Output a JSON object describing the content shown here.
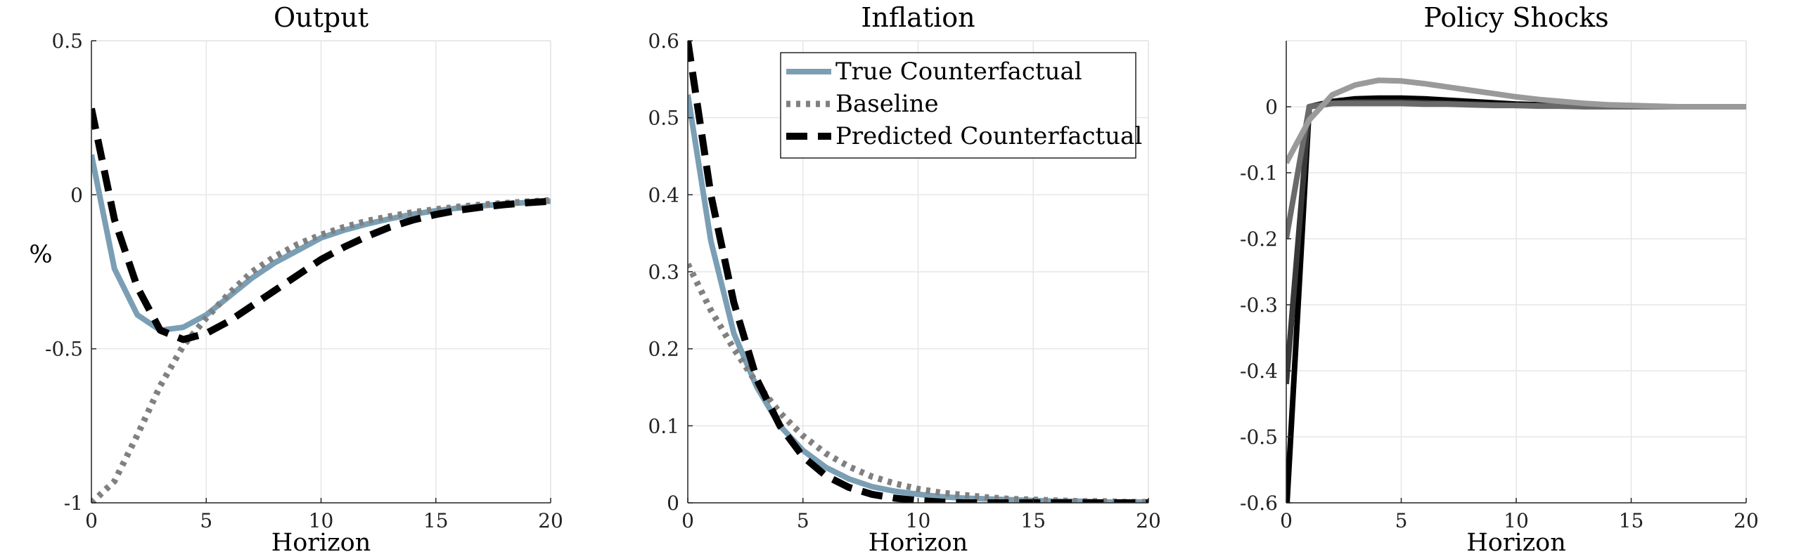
{
  "chart_data": [
    {
      "type": "line",
      "title": "Output",
      "xlabel": "Horizon",
      "ylabel": "%",
      "xlim": [
        0,
        20
      ],
      "ylim": [
        -1,
        0.5
      ],
      "xticks": [
        0,
        5,
        10,
        15,
        20
      ],
      "xtick_labels": [
        "0",
        "5",
        "10",
        "15",
        "20"
      ],
      "yticks": [
        -1,
        -0.5,
        0,
        0.5
      ],
      "ytick_labels": [
        "-1",
        "-0.5",
        "0",
        "0.5"
      ],
      "grid": true,
      "x": [
        0,
        1,
        2,
        3,
        4,
        5,
        6,
        7,
        8,
        9,
        10,
        11,
        12,
        13,
        14,
        15,
        16,
        17,
        18,
        19,
        20
      ],
      "series": [
        {
          "key": "true_cf",
          "color": "#7a9fb5",
          "style": "solid",
          "values": [
            0.13,
            -0.24,
            -0.39,
            -0.44,
            -0.43,
            -0.39,
            -0.33,
            -0.27,
            -0.22,
            -0.18,
            -0.14,
            -0.115,
            -0.095,
            -0.078,
            -0.063,
            -0.052,
            -0.043,
            -0.036,
            -0.03,
            -0.025,
            -0.021
          ]
        },
        {
          "key": "baseline",
          "color": "#808080",
          "style": "dotted",
          "values": [
            -1.0,
            -0.93,
            -0.78,
            -0.62,
            -0.49,
            -0.4,
            -0.32,
            -0.25,
            -0.2,
            -0.16,
            -0.13,
            -0.105,
            -0.085,
            -0.07,
            -0.057,
            -0.047,
            -0.039,
            -0.032,
            -0.027,
            -0.022,
            -0.018
          ]
        },
        {
          "key": "predicted_cf",
          "color": "#000000",
          "style": "dashed",
          "values": [
            0.28,
            -0.08,
            -0.3,
            -0.44,
            -0.47,
            -0.45,
            -0.41,
            -0.36,
            -0.31,
            -0.26,
            -0.21,
            -0.17,
            -0.135,
            -0.105,
            -0.082,
            -0.064,
            -0.05,
            -0.04,
            -0.032,
            -0.026,
            -0.021
          ]
        }
      ]
    },
    {
      "type": "line",
      "title": "Inflation",
      "xlabel": "Horizon",
      "xlim": [
        0,
        20
      ],
      "ylim": [
        0,
        0.6
      ],
      "xticks": [
        0,
        5,
        10,
        15,
        20
      ],
      "xtick_labels": [
        "0",
        "5",
        "10",
        "15",
        "20"
      ],
      "yticks": [
        0,
        0.1,
        0.2,
        0.3,
        0.4,
        0.5,
        0.6
      ],
      "ytick_labels": [
        "0",
        "0.1",
        "0.2",
        "0.3",
        "0.4",
        "0.5",
        "0.6"
      ],
      "grid": true,
      "legend": {
        "position": "top-right",
        "entries": [
          {
            "label": "True Counterfactual",
            "series_key": "true_cf"
          },
          {
            "label": "Baseline",
            "series_key": "baseline"
          },
          {
            "label": "Predicted Counterfactual",
            "series_key": "predicted_cf"
          }
        ]
      },
      "x": [
        0,
        1,
        2,
        3,
        4,
        5,
        6,
        7,
        8,
        9,
        10,
        11,
        12,
        13,
        14,
        15,
        16,
        17,
        18,
        19,
        20
      ],
      "series": [
        {
          "key": "true_cf",
          "color": "#7a9fb5",
          "style": "solid",
          "values": [
            0.53,
            0.34,
            0.22,
            0.15,
            0.1,
            0.068,
            0.046,
            0.031,
            0.021,
            0.015,
            0.011,
            0.008,
            0.006,
            0.005,
            0.004,
            0.003,
            0.002,
            0.002,
            0.001,
            0.001,
            0.001
          ]
        },
        {
          "key": "baseline",
          "color": "#808080",
          "style": "dotted",
          "values": [
            0.31,
            0.25,
            0.2,
            0.155,
            0.117,
            0.087,
            0.064,
            0.047,
            0.034,
            0.025,
            0.018,
            0.013,
            0.01,
            0.007,
            0.005,
            0.004,
            0.003,
            0.002,
            0.002,
            0.001,
            0.001
          ]
        },
        {
          "key": "predicted_cf",
          "color": "#000000",
          "style": "dashed",
          "values": [
            0.6,
            0.4,
            0.26,
            0.16,
            0.1,
            0.06,
            0.035,
            0.02,
            0.011,
            0.006,
            0.003,
            0.001,
            0.0,
            0.0,
            0.0,
            0.0,
            0.0,
            0.0,
            0.0,
            0.0,
            0.0
          ]
        }
      ]
    },
    {
      "type": "line",
      "title": "Policy Shocks",
      "xlabel": "Horizon",
      "xlim": [
        0,
        20
      ],
      "ylim": [
        -0.6,
        0.1
      ],
      "xticks": [
        0,
        5,
        10,
        15,
        20
      ],
      "xtick_labels": [
        "0",
        "5",
        "10",
        "15",
        "20"
      ],
      "yticks": [
        -0.6,
        -0.5,
        -0.4,
        -0.3,
        -0.2,
        -0.1,
        0
      ],
      "ytick_labels": [
        "-0.6",
        "-0.5",
        "-0.4",
        "-0.3",
        "-0.2",
        "-0.1",
        "0"
      ],
      "grid": true,
      "x": [
        0,
        1,
        2,
        3,
        4,
        5,
        6,
        7,
        8,
        9,
        10,
        11,
        12,
        13,
        14,
        15,
        16,
        17,
        18,
        19,
        20
      ],
      "series": [
        {
          "key": "shock_1",
          "color": "#000000",
          "style": "solid",
          "values": [
            -0.62,
            0.0,
            0.008,
            0.012,
            0.013,
            0.013,
            0.012,
            0.01,
            0.008,
            0.006,
            0.004,
            0.003,
            0.002,
            0.001,
            0.001,
            0.0,
            0.0,
            0.0,
            0.0,
            0.0,
            0.0
          ]
        },
        {
          "key": "shock_2",
          "color": "#383838",
          "style": "solid",
          "values": [
            -0.42,
            0.0,
            0.005,
            0.007,
            0.007,
            0.007,
            0.006,
            0.005,
            0.004,
            0.003,
            0.002,
            0.002,
            0.001,
            0.001,
            0.0,
            0.0,
            0.0,
            0.0,
            0.0,
            0.0,
            0.0
          ]
        },
        {
          "key": "shock_3",
          "color": "#6a6a6a",
          "style": "solid",
          "values": [
            -0.2,
            0.0,
            0.005,
            0.005,
            0.005,
            0.005,
            0.004,
            0.004,
            0.003,
            0.002,
            0.002,
            0.001,
            0.001,
            0.0,
            0.0,
            0.0,
            0.0,
            0.0,
            0.0,
            0.0,
            0.0
          ]
        },
        {
          "key": "shock_4",
          "color": "#9a9a9a",
          "style": "solid",
          "values": [
            -0.085,
            -0.02,
            0.018,
            0.033,
            0.04,
            0.039,
            0.035,
            0.03,
            0.025,
            0.02,
            0.015,
            0.011,
            0.008,
            0.005,
            0.003,
            0.002,
            0.001,
            0.0,
            0.0,
            0.0,
            0.0
          ]
        }
      ]
    }
  ]
}
